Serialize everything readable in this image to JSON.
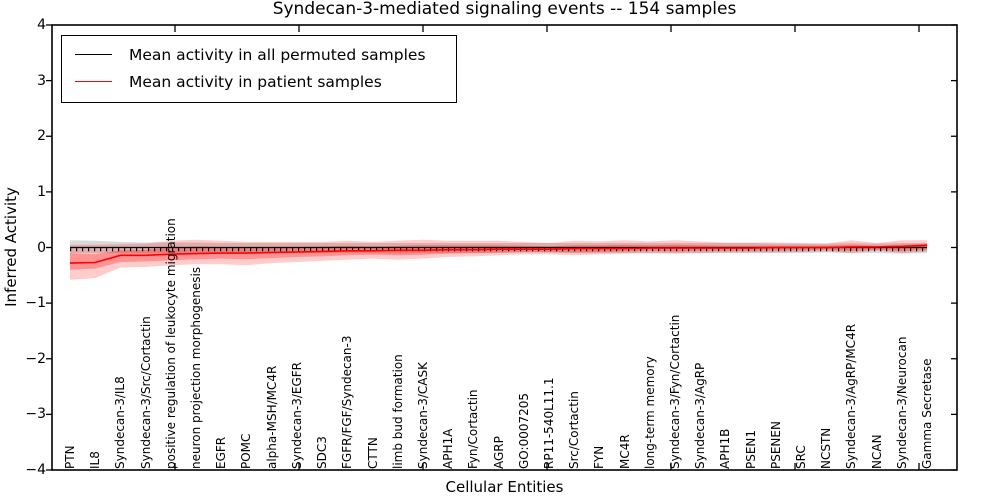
{
  "chart_data": {
    "type": "line",
    "title": "Syndecan-3-mediated signaling events -- 154 samples",
    "xlabel": "Cellular Entities",
    "ylabel": "Inferred Activity",
    "ylim": [
      -4,
      4
    ],
    "yticks": [
      4,
      3,
      2,
      1,
      0,
      -1,
      -2,
      -3,
      -4
    ],
    "grid": false,
    "legend_position": "upper left",
    "legend": [
      {
        "label": "Mean activity in all permuted samples",
        "color": "#000000"
      },
      {
        "label": "Mean activity in patient samples",
        "color": "#ff0000"
      }
    ],
    "categories": [
      "PTN",
      "IL8",
      "Syndecan-3/IL8",
      "Syndecan-3/Src/Cortactin",
      "positive regulation of leukocyte migration",
      "neuron projection morphogenesis",
      "EGFR",
      "POMC",
      "alpha-MSH/MC4R",
      "Syndecan-3/EGFR",
      "SDC3",
      "FGFR/FGF/Syndecan-3",
      "CTTN",
      "limb bud formation",
      "Syndecan-3/CASK",
      "APH1A",
      "Fyn/Cortactin",
      "AGRP",
      "GO:0007205",
      "RP11-540L11.1",
      "Src/Cortactin",
      "FYN",
      "MC4R",
      "long-term memory",
      "Syndecan-3/Fyn/Cortactin",
      "Syndecan-3/AgRP",
      "APH1B",
      "PSEN1",
      "PSENEN",
      "SRC",
      "NCSTN",
      "Syndecan-3/AgRP/MC4R",
      "NCAN",
      "Syndecan-3/Neurocan",
      "Gamma Secretase"
    ],
    "series": [
      {
        "name": "Mean activity in all permuted samples",
        "color": "#000000",
        "values": [
          0,
          0,
          0,
          0,
          0,
          0,
          0,
          0,
          0,
          0,
          0,
          0,
          0,
          0,
          0,
          0,
          0,
          0,
          0,
          0,
          0,
          0,
          0,
          0,
          0,
          0,
          0,
          0,
          0,
          0,
          0,
          0,
          0,
          0,
          0
        ]
      },
      {
        "name": "Mean activity in patient samples",
        "color": "#ff0000",
        "values": [
          -0.28,
          -0.27,
          -0.14,
          -0.14,
          -0.12,
          -0.11,
          -0.1,
          -0.1,
          -0.09,
          -0.08,
          -0.07,
          -0.06,
          -0.06,
          -0.05,
          -0.05,
          -0.04,
          -0.04,
          -0.03,
          -0.03,
          -0.03,
          -0.02,
          -0.02,
          -0.02,
          -0.01,
          -0.01,
          -0.01,
          -0.01,
          -0.01,
          0.0,
          0.0,
          0.0,
          0.01,
          0.01,
          0.02,
          0.04
        ]
      }
    ],
    "bands": [
      {
        "name": "permuted-range",
        "color": "rgba(130,130,130,0.30)",
        "low": [
          -0.1,
          -0.1,
          -0.1,
          -0.1,
          -0.1,
          -0.1,
          -0.1,
          -0.11,
          -0.1,
          -0.1,
          -0.1,
          -0.1,
          -0.1,
          -0.11,
          -0.1,
          -0.1,
          -0.1,
          -0.1,
          -0.09,
          -0.09,
          -0.1,
          -0.1,
          -0.1,
          -0.1,
          -0.1,
          -0.1,
          -0.1,
          -0.1,
          -0.1,
          -0.1,
          -0.09,
          -0.1,
          -0.1,
          -0.11,
          -0.1
        ],
        "high": [
          0.13,
          0.12,
          0.1,
          0.09,
          0.09,
          0.09,
          0.08,
          0.08,
          0.08,
          0.08,
          0.08,
          0.08,
          0.08,
          0.08,
          0.08,
          0.08,
          0.08,
          0.08,
          0.08,
          0.08,
          0.08,
          0.08,
          0.08,
          0.08,
          0.08,
          0.08,
          0.08,
          0.08,
          0.07,
          0.07,
          0.07,
          0.08,
          0.07,
          0.08,
          0.08
        ]
      },
      {
        "name": "patient-outer",
        "color": "rgba(255,0,0,0.20)",
        "low": [
          -0.58,
          -0.55,
          -0.36,
          -0.35,
          -0.32,
          -0.3,
          -0.3,
          -0.32,
          -0.28,
          -0.26,
          -0.24,
          -0.22,
          -0.2,
          -0.22,
          -0.2,
          -0.17,
          -0.16,
          -0.14,
          -0.12,
          -0.12,
          -0.14,
          -0.12,
          -0.11,
          -0.1,
          -0.11,
          -0.1,
          -0.09,
          -0.09,
          -0.09,
          -0.08,
          -0.07,
          -0.1,
          -0.06,
          -0.1,
          -0.07
        ],
        "high": [
          0.05,
          0.05,
          0.06,
          0.07,
          0.12,
          0.14,
          0.12,
          0.1,
          0.1,
          0.1,
          0.1,
          0.12,
          0.1,
          0.12,
          0.14,
          0.12,
          0.12,
          0.12,
          0.1,
          0.08,
          0.12,
          0.11,
          0.13,
          0.11,
          0.13,
          0.11,
          0.09,
          0.09,
          0.09,
          0.08,
          0.07,
          0.13,
          0.08,
          0.13,
          0.13
        ]
      },
      {
        "name": "patient-inner",
        "color": "rgba(255,0,0,0.28)",
        "low": [
          -0.4,
          -0.38,
          -0.26,
          -0.25,
          -0.23,
          -0.21,
          -0.2,
          -0.21,
          -0.19,
          -0.17,
          -0.16,
          -0.14,
          -0.13,
          -0.14,
          -0.13,
          -0.11,
          -0.1,
          -0.09,
          -0.08,
          -0.08,
          -0.09,
          -0.08,
          -0.07,
          -0.06,
          -0.07,
          -0.06,
          -0.06,
          -0.06,
          -0.05,
          -0.05,
          -0.04,
          -0.06,
          -0.04,
          -0.06,
          -0.04
        ],
        "high": [
          -0.1,
          -0.12,
          -0.05,
          -0.04,
          0.0,
          0.02,
          0.01,
          0.0,
          0.01,
          0.01,
          0.02,
          0.03,
          0.02,
          0.03,
          0.04,
          0.04,
          0.04,
          0.04,
          0.03,
          0.02,
          0.04,
          0.04,
          0.05,
          0.04,
          0.05,
          0.04,
          0.03,
          0.03,
          0.03,
          0.03,
          0.03,
          0.05,
          0.03,
          0.05,
          0.07
        ]
      }
    ],
    "zero_line": {
      "style": "dotted",
      "color": "#000000",
      "y": 0
    }
  }
}
